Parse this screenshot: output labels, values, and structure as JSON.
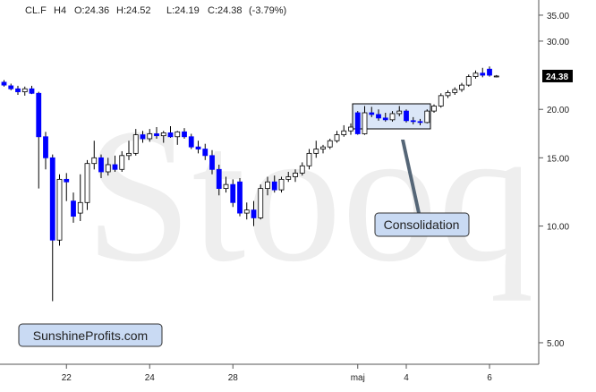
{
  "chart_data": {
    "type": "candlestick",
    "header": [
      "CL.F",
      "H4",
      "O:24.36",
      "H:24.52",
      "L:24.19",
      "C:24.38",
      "(-3.79%)"
    ],
    "watermark": "Stooq",
    "annotation": "Consolidation",
    "source": "SunshineProfits.com",
    "categories": [
      null,
      null,
      null,
      null,
      null,
      null,
      null,
      null,
      null,
      "22",
      null,
      null,
      null,
      null,
      null,
      null,
      null,
      null,
      null,
      null,
      null,
      "24",
      null,
      null,
      null,
      null,
      null,
      null,
      null,
      null,
      null,
      null,
      null,
      "28",
      null,
      null,
      null,
      null,
      null,
      null,
      null,
      null,
      null,
      null,
      null,
      null,
      null,
      null,
      null,
      null,
      null,
      "maj",
      null,
      null,
      null,
      null,
      null,
      null,
      "4",
      null,
      null,
      null,
      null,
      null,
      null,
      null,
      null,
      null,
      null,
      null,
      "6",
      null
    ],
    "open": [
      23.5,
      23.0,
      22.6,
      22.2,
      22.6,
      22.0,
      17.0,
      15.0,
      9.2,
      13.2,
      11.6,
      10.8,
      11.5,
      14.5,
      15.0,
      13.8,
      14.4,
      14.0,
      15.2,
      15.4,
      17.2,
      16.8,
      17.3,
      17.1,
      17.4,
      17.0,
      17.5,
      17.0,
      16.0,
      15.8,
      15.2,
      14.0,
      12.5,
      12.8,
      13.0,
      10.8,
      11.0,
      10.5,
      12.5,
      13.0,
      12.4,
      13.2,
      13.4,
      13.7,
      14.3,
      15.4,
      15.8,
      16.0,
      16.6,
      17.2,
      17.6,
      19.6,
      17.3,
      19.6,
      19.4,
      19.0,
      18.8,
      19.5,
      19.8,
      18.7,
      18.6,
      18.5,
      19.8,
      20.4,
      21.7,
      22.1,
      22.5,
      23.1,
      24.3,
      24.8,
      25.4,
      24.36
    ],
    "high": [
      23.8,
      23.3,
      23.0,
      22.9,
      23.0,
      22.2,
      17.5,
      15.3,
      13.6,
      13.7,
      12.2,
      13.6,
      14.8,
      16.6,
      15.3,
      15.0,
      15.2,
      15.6,
      16.6,
      17.8,
      17.6,
      17.8,
      18.0,
      17.6,
      18.1,
      17.6,
      17.9,
      17.3,
      16.6,
      16.3,
      15.7,
      14.4,
      13.4,
      13.2,
      13.3,
      11.5,
      11.6,
      12.8,
      13.4,
      13.5,
      13.4,
      13.8,
      14.0,
      14.6,
      15.8,
      16.6,
      16.2,
      16.8,
      17.6,
      18.2,
      18.4,
      19.8,
      20.4,
      20.3,
      20.0,
      19.6,
      19.8,
      20.4,
      20.0,
      19.1,
      18.9,
      20.0,
      20.6,
      22.0,
      22.4,
      22.8,
      23.4,
      24.6,
      25.2,
      25.6,
      25.8,
      24.52
    ],
    "low": [
      22.9,
      22.4,
      21.8,
      21.7,
      21.9,
      12.5,
      14.0,
      6.4,
      8.9,
      11.6,
      10.2,
      10.3,
      11.0,
      14.0,
      13.3,
      13.5,
      13.8,
      13.8,
      14.8,
      15.2,
      16.4,
      16.5,
      16.8,
      16.4,
      16.9,
      16.2,
      16.8,
      15.8,
      15.4,
      14.8,
      13.6,
      12.0,
      12.2,
      11.2,
      10.6,
      10.4,
      10.0,
      10.4,
      12.0,
      12.2,
      12.2,
      13.0,
      13.0,
      13.5,
      14.0,
      15.0,
      15.4,
      15.8,
      16.4,
      17.0,
      17.2,
      17.2,
      17.2,
      19.1,
      18.7,
      18.6,
      18.6,
      19.2,
      18.5,
      18.3,
      18.2,
      18.4,
      19.6,
      20.2,
      21.4,
      21.8,
      22.2,
      22.9,
      24.0,
      24.2,
      24.3,
      24.19
    ],
    "close": [
      23.1,
      22.6,
      22.2,
      22.6,
      22.0,
      17.0,
      15.0,
      9.2,
      13.2,
      13.0,
      10.6,
      11.5,
      14.5,
      15.0,
      13.8,
      14.4,
      14.0,
      15.2,
      15.4,
      17.2,
      16.8,
      17.3,
      17.1,
      17.4,
      17.0,
      17.5,
      17.0,
      16.0,
      15.8,
      15.2,
      14.0,
      12.5,
      12.8,
      11.5,
      10.8,
      11.0,
      10.5,
      12.5,
      13.0,
      12.4,
      13.2,
      13.4,
      13.7,
      14.3,
      15.4,
      15.8,
      16.0,
      16.6,
      17.2,
      17.6,
      18.0,
      17.3,
      19.6,
      19.4,
      19.0,
      18.8,
      19.5,
      19.8,
      18.7,
      18.6,
      18.5,
      19.8,
      20.4,
      21.7,
      22.1,
      22.5,
      23.1,
      24.3,
      24.8,
      24.5,
      24.5,
      24.38
    ],
    "up_color": "#ffffff",
    "down_color": "#0000ff",
    "log_scale": true,
    "ylim": [
      4.4,
      38.3
    ],
    "yticks": [
      {
        "value": 35,
        "label": "35.00"
      },
      {
        "value": 30,
        "label": "30.00"
      },
      {
        "value": 20,
        "label": "20.00"
      },
      {
        "value": 15,
        "label": "15.00"
      },
      {
        "value": 10,
        "label": "10.00"
      },
      {
        "value": 5,
        "label": "5.00"
      }
    ],
    "last_price": 24.38
  }
}
